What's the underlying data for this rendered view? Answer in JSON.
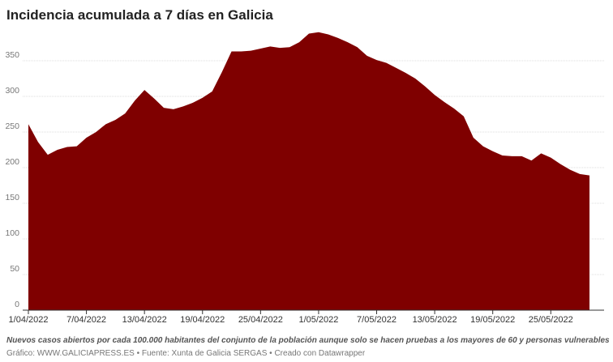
{
  "chart_data": {
    "type": "area",
    "title": "Incidencia acumulada a 7 días en Galicia",
    "notes": "Nuevos casos abiertos por cada 100.000 habitantes del conjunto de la población aunque solo se hacen pruebas a los mayores de 60 y personas vulnerables",
    "source": "Gráfico: WWW.GALICIAPRESS.ES • Fuente: Xunta de Galicia SERGAS • Creado con Datawrapper",
    "color": "#7f0000",
    "x": [
      "2022-04-01",
      "2022-04-02",
      "2022-04-03",
      "2022-04-04",
      "2022-04-05",
      "2022-04-06",
      "2022-04-07",
      "2022-04-08",
      "2022-04-09",
      "2022-04-10",
      "2022-04-11",
      "2022-04-12",
      "2022-04-13",
      "2022-04-14",
      "2022-04-15",
      "2022-04-16",
      "2022-04-17",
      "2022-04-18",
      "2022-04-19",
      "2022-04-20",
      "2022-04-21",
      "2022-04-22",
      "2022-04-23",
      "2022-04-24",
      "2022-04-25",
      "2022-04-26",
      "2022-04-27",
      "2022-04-28",
      "2022-04-29",
      "2022-04-30",
      "2022-05-01",
      "2022-05-02",
      "2022-05-03",
      "2022-05-04",
      "2022-05-05",
      "2022-05-06",
      "2022-05-07",
      "2022-05-08",
      "2022-05-09",
      "2022-05-10",
      "2022-05-11",
      "2022-05-12",
      "2022-05-13",
      "2022-05-14",
      "2022-05-15",
      "2022-05-16",
      "2022-05-17",
      "2022-05-18",
      "2022-05-19",
      "2022-05-20",
      "2022-05-21",
      "2022-05-22",
      "2022-05-23",
      "2022-05-24",
      "2022-05-25",
      "2022-05-26",
      "2022-05-27",
      "2022-05-28",
      "2022-05-29"
    ],
    "values": [
      261,
      236,
      218,
      225,
      229,
      230,
      242,
      250,
      261,
      267,
      276,
      294,
      309,
      297,
      284,
      282,
      286,
      291,
      298,
      307,
      334,
      363,
      363,
      364,
      367,
      370,
      368,
      369,
      376,
      388,
      390,
      387,
      382,
      376,
      369,
      357,
      351,
      347,
      340,
      333,
      325,
      314,
      302,
      292,
      283,
      272,
      242,
      230,
      223,
      217,
      216,
      216,
      210,
      220,
      214,
      205,
      197,
      191,
      189
    ],
    "xlim": [
      "2022-04-01",
      "2022-05-29"
    ],
    "ylim": [
      0,
      400
    ],
    "yticks": [
      0,
      50,
      100,
      150,
      200,
      250,
      300,
      350
    ],
    "xticks": [
      {
        "value": "2022-04-01",
        "label": "1/04/2022"
      },
      {
        "value": "2022-04-07",
        "label": "7/04/2022"
      },
      {
        "value": "2022-04-13",
        "label": "13/04/2022"
      },
      {
        "value": "2022-04-19",
        "label": "19/04/2022"
      },
      {
        "value": "2022-04-25",
        "label": "25/04/2022"
      },
      {
        "value": "2022-05-01",
        "label": "1/05/2022"
      },
      {
        "value": "2022-05-07",
        "label": "7/05/2022"
      },
      {
        "value": "2022-05-13",
        "label": "13/05/2022"
      },
      {
        "value": "2022-05-19",
        "label": "19/05/2022"
      },
      {
        "value": "2022-05-25",
        "label": "25/05/2022"
      }
    ],
    "grid": true
  }
}
